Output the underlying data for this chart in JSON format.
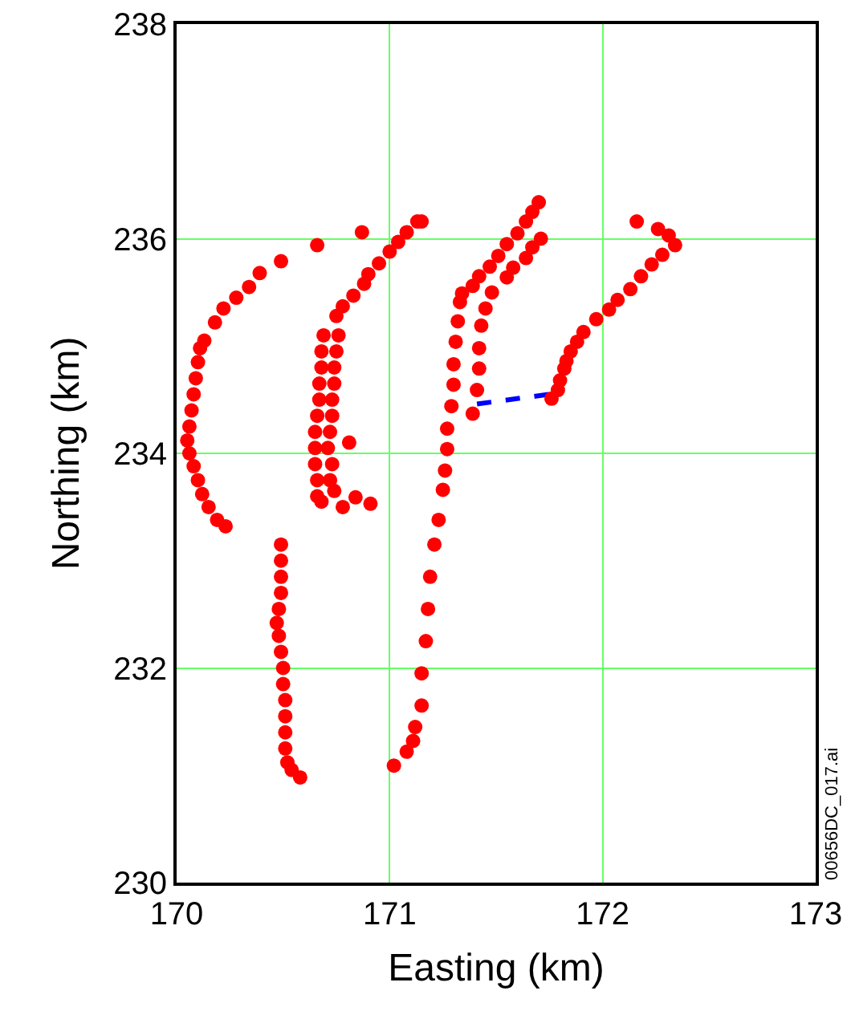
{
  "chart_data": {
    "type": "scatter",
    "xlabel": "Easting (km)",
    "ylabel": "Northing (km)",
    "xlim": [
      170,
      173
    ],
    "ylim": [
      230,
      238
    ],
    "xticks": [
      170,
      171,
      172,
      173
    ],
    "yticks": [
      230,
      232,
      234,
      236,
      238
    ],
    "grid": true,
    "marker": "circle",
    "annotations": [
      "00656DC_017.ai"
    ],
    "series": [
      {
        "color": "#ff0000",
        "x": [
          170.23,
          170.19,
          170.15,
          170.12,
          170.1,
          170.08,
          170.06,
          170.05,
          170.06,
          170.07,
          170.08,
          170.09,
          170.1,
          170.11,
          170.13,
          170.18,
          170.22,
          170.28,
          170.34,
          170.39,
          170.49,
          170.49,
          170.49,
          170.49,
          170.49,
          170.48,
          170.47,
          170.48,
          170.49,
          170.5,
          170.5,
          170.51,
          170.51,
          170.51,
          170.51,
          170.52,
          170.54,
          170.58,
          170.66,
          170.66,
          170.65,
          170.65,
          170.65,
          170.66,
          170.67,
          170.67,
          170.68,
          170.68,
          170.69,
          170.72,
          170.73,
          170.71,
          170.72,
          170.73,
          170.73,
          170.74,
          170.74,
          170.75,
          170.76,
          170.75,
          170.78,
          170.83,
          170.88,
          170.9,
          170.95,
          171.0,
          171.04,
          171.08,
          171.13,
          171.15,
          170.87,
          170.66,
          170.81,
          170.68,
          170.78,
          170.84,
          170.91,
          170.74,
          171.02,
          171.08,
          171.11,
          171.12,
          171.15,
          171.15,
          171.17,
          171.18,
          171.19,
          171.21,
          171.23,
          171.25,
          171.26,
          171.27,
          171.27,
          171.29,
          171.3,
          171.3,
          171.31,
          171.32,
          171.33,
          171.34,
          171.39,
          171.42,
          171.47,
          171.51,
          171.55,
          171.6,
          171.64,
          171.67,
          171.7,
          171.39,
          171.41,
          171.42,
          171.42,
          171.43,
          171.45,
          171.48,
          171.55,
          171.58,
          171.64,
          171.67,
          171.71,
          171.76,
          171.79,
          171.8,
          171.82,
          171.83,
          171.85,
          171.88,
          171.91,
          171.97,
          172.03,
          172.07,
          172.13,
          172.18,
          172.23,
          172.28,
          172.34,
          172.31,
          172.26,
          172.16
        ],
        "values": [
          233.32,
          233.38,
          233.5,
          233.62,
          233.75,
          233.88,
          234.0,
          234.12,
          234.25,
          234.4,
          234.55,
          234.7,
          234.85,
          234.98,
          235.05,
          235.22,
          235.35,
          235.45,
          235.55,
          235.68,
          235.79,
          233.15,
          233.0,
          232.85,
          232.7,
          232.55,
          232.42,
          232.3,
          232.15,
          232.0,
          231.85,
          231.7,
          231.55,
          231.4,
          231.25,
          231.12,
          231.05,
          230.98,
          233.6,
          233.75,
          233.9,
          234.05,
          234.2,
          234.35,
          234.5,
          234.65,
          234.8,
          234.95,
          235.1,
          233.75,
          233.9,
          234.05,
          234.2,
          234.35,
          234.5,
          234.65,
          234.8,
          234.95,
          235.1,
          235.28,
          235.37,
          235.47,
          235.58,
          235.67,
          235.77,
          235.88,
          235.97,
          236.06,
          236.16,
          236.16,
          236.06,
          235.94,
          234.1,
          233.55,
          233.5,
          233.59,
          233.53,
          233.65,
          231.09,
          231.22,
          231.32,
          231.45,
          231.65,
          231.95,
          232.25,
          232.55,
          232.85,
          233.15,
          233.38,
          233.66,
          233.84,
          234.04,
          234.23,
          234.44,
          234.64,
          234.83,
          235.04,
          235.23,
          235.41,
          235.49,
          235.56,
          235.65,
          235.74,
          235.84,
          235.95,
          236.05,
          236.16,
          236.25,
          236.34,
          234.37,
          234.59,
          234.79,
          234.98,
          235.19,
          235.35,
          235.5,
          235.64,
          235.73,
          235.82,
          235.92,
          236.0,
          234.51,
          234.59,
          234.68,
          234.79,
          234.86,
          234.95,
          235.04,
          235.13,
          235.25,
          235.34,
          235.43,
          235.53,
          235.65,
          235.76,
          235.85,
          235.94,
          236.03,
          236.09,
          236.16
        ]
      },
      {
        "type": "line",
        "color": "#0000ff",
        "line_style": "dashed",
        "marker": "none",
        "x": [
          171.41,
          171.75
        ],
        "values": [
          234.46,
          234.55
        ]
      }
    ]
  }
}
